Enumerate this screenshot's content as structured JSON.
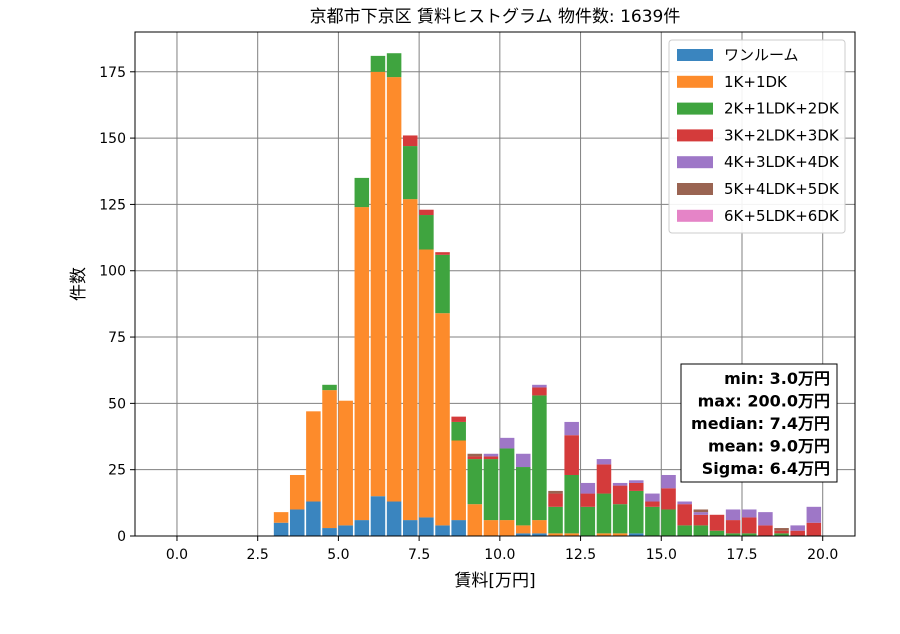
{
  "chart_data": {
    "type": "bar",
    "stacked": true,
    "title": "京都市下京区 賃料ヒストグラム  物件数: 1639件",
    "xlabel": "賃料[万円]",
    "ylabel": "件数",
    "xlim": [
      -1.3,
      21.0
    ],
    "ylim": [
      0,
      190
    ],
    "xticks": [
      0.0,
      2.5,
      5.0,
      7.5,
      10.0,
      12.5,
      15.0,
      17.5,
      20.0
    ],
    "xtick_labels": [
      "0.0",
      "2.5",
      "5.0",
      "7.5",
      "10.0",
      "12.5",
      "15.0",
      "17.5",
      "20.0"
    ],
    "yticks": [
      0,
      25,
      50,
      75,
      100,
      125,
      150,
      175
    ],
    "ytick_labels": [
      "0",
      "25",
      "50",
      "75",
      "100",
      "125",
      "150",
      "175"
    ],
    "grid": true,
    "legend_position": "top-right",
    "bin_width": 0.5,
    "bin_starts": [
      3.0,
      3.5,
      4.0,
      4.5,
      5.0,
      5.5,
      6.0,
      6.5,
      7.0,
      7.5,
      8.0,
      8.5,
      9.0,
      9.5,
      10.0,
      10.5,
      11.0,
      11.5,
      12.0,
      12.5,
      13.0,
      13.5,
      14.0,
      14.5,
      15.0,
      15.5,
      16.0,
      16.5,
      17.0,
      17.5,
      18.0,
      18.5,
      19.0,
      19.5
    ],
    "series": [
      {
        "name": "ワンルーム",
        "color": "#3a85bf",
        "values": [
          5,
          10,
          13,
          3,
          4,
          6,
          15,
          13,
          6,
          7,
          4,
          6,
          0,
          0,
          0,
          1,
          1,
          0,
          0,
          0,
          0,
          0,
          1,
          0,
          0,
          0,
          0,
          0,
          0,
          0,
          0,
          0,
          0,
          0
        ]
      },
      {
        "name": "1K+1DK",
        "color": "#fd8b2b",
        "values": [
          4,
          13,
          34,
          52,
          47,
          118,
          160,
          160,
          121,
          101,
          80,
          30,
          12,
          6,
          6,
          3,
          5,
          1,
          1,
          0,
          1,
          1,
          0,
          0,
          0,
          0,
          0,
          0,
          0,
          0,
          0,
          0,
          0,
          0
        ]
      },
      {
        "name": "2K+1LDK+2DK",
        "color": "#3fa43f",
        "values": [
          0,
          0,
          0,
          2,
          0,
          11,
          6,
          9,
          20,
          13,
          22,
          7,
          17,
          23,
          27,
          22,
          47,
          10,
          22,
          11,
          15,
          11,
          16,
          11,
          10,
          4,
          4,
          2,
          1,
          1,
          0,
          1,
          0,
          0
        ]
      },
      {
        "name": "3K+2LDK+3DK",
        "color": "#d43b3b",
        "values": [
          0,
          0,
          0,
          0,
          0,
          0,
          0,
          0,
          4,
          2,
          1,
          2,
          1,
          1,
          0,
          0,
          3,
          5,
          15,
          5,
          11,
          7,
          3,
          2,
          8,
          8,
          4,
          6,
          5,
          6,
          4,
          1,
          2,
          5
        ]
      },
      {
        "name": "4K+3LDK+4DK",
        "color": "#9e77c7",
        "values": [
          0,
          0,
          0,
          0,
          0,
          0,
          0,
          0,
          0,
          0,
          0,
          0,
          0,
          1,
          4,
          5,
          1,
          0,
          5,
          4,
          2,
          1,
          1,
          3,
          5,
          1,
          1,
          0,
          4,
          3,
          5,
          0,
          2,
          6
        ]
      },
      {
        "name": "5K+4LDK+5DK",
        "color": "#9a6452",
        "values": [
          0,
          0,
          0,
          0,
          0,
          0,
          0,
          0,
          0,
          0,
          0,
          0,
          1,
          0,
          0,
          0,
          0,
          1,
          0,
          0,
          0,
          0,
          0,
          0,
          0,
          0,
          1,
          0,
          0,
          0,
          0,
          1,
          0,
          0
        ]
      },
      {
        "name": "6K+5LDK+6DK",
        "color": "#e584c7",
        "values": [
          0,
          0,
          0,
          0,
          0,
          0,
          0,
          0,
          0,
          0,
          0,
          0,
          0,
          0,
          0,
          0,
          0,
          0,
          0,
          0,
          0,
          0,
          0,
          0,
          0,
          0,
          0,
          0,
          0,
          0,
          0,
          0,
          0,
          0
        ]
      }
    ],
    "stats": [
      "min: 3.0万円",
      "max: 200.0万円",
      "median: 7.4万円",
      "mean: 9.0万円",
      "Sigma: 6.4万円"
    ]
  }
}
